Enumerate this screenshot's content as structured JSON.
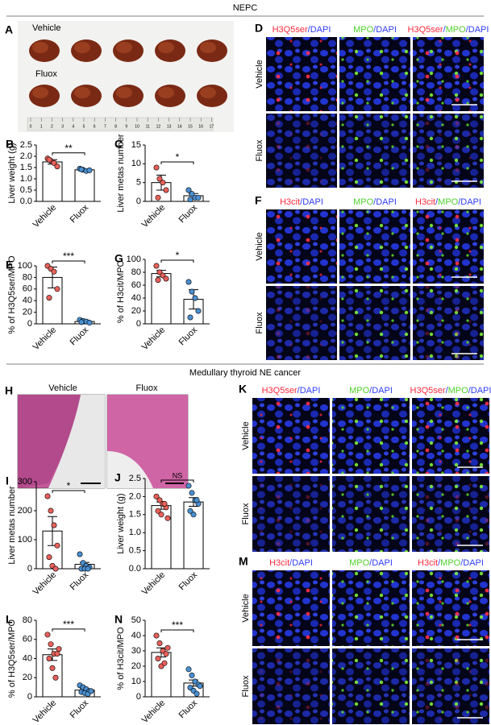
{
  "header": {
    "top": "NEPC",
    "bottom": "Medullary thyroid NE cancer"
  },
  "panel_a": {
    "letter": "A",
    "rows": [
      "Vehicle",
      "Fluox"
    ],
    "ruler": [
      0,
      1,
      2,
      3,
      4,
      5,
      6,
      7,
      8,
      9,
      10,
      11,
      12,
      13,
      14,
      15,
      16,
      17
    ]
  },
  "panel_h": {
    "letter": "H",
    "labels": [
      "Vehicle",
      "Fluox"
    ]
  },
  "micro": [
    {
      "letter": "D",
      "rows": [
        "Vehicle",
        "Fluox"
      ],
      "columns": [
        [
          {
            "text": "H3Q5ser",
            "color": "#ff2a3c"
          },
          {
            "text": "/DAPI",
            "color": "#2f3cf5"
          }
        ],
        [
          {
            "text": "MPO",
            "color": "#4fd12a"
          },
          {
            "text": "/DAPI",
            "color": "#2f3cf5"
          }
        ],
        [
          {
            "text": "H3Q5ser",
            "color": "#ff2a3c"
          },
          {
            "text": "/",
            "color": "#2f3cf5"
          },
          {
            "text": "MPO",
            "color": "#4fd12a"
          },
          {
            "text": "/DAPI",
            "color": "#2f3cf5"
          }
        ]
      ]
    },
    {
      "letter": "F",
      "rows": [
        "Vehicle",
        "Fluox"
      ],
      "columns": [
        [
          {
            "text": "H3cit",
            "color": "#ff2a3c"
          },
          {
            "text": "/DAPI",
            "color": "#2f3cf5"
          }
        ],
        [
          {
            "text": "MPO",
            "color": "#4fd12a"
          },
          {
            "text": "/DAPI",
            "color": "#2f3cf5"
          }
        ],
        [
          {
            "text": "H3cit",
            "color": "#ff2a3c"
          },
          {
            "text": "/",
            "color": "#2f3cf5"
          },
          {
            "text": "MPO",
            "color": "#4fd12a"
          },
          {
            "text": "/DAPI",
            "color": "#2f3cf5"
          }
        ]
      ]
    },
    {
      "letter": "K",
      "rows": [
        "Vehicle",
        "Fluox"
      ],
      "columns": [
        [
          {
            "text": "H3Q5ser",
            "color": "#ff2a3c"
          },
          {
            "text": "/DAPI",
            "color": "#2f3cf5"
          }
        ],
        [
          {
            "text": "MPO",
            "color": "#4fd12a"
          },
          {
            "text": "/DAPI",
            "color": "#2f3cf5"
          }
        ],
        [
          {
            "text": "H3Q5ser",
            "color": "#ff2a3c"
          },
          {
            "text": "/",
            "color": "#2f3cf5"
          },
          {
            "text": "MPO",
            "color": "#4fd12a"
          },
          {
            "text": "/DAPI",
            "color": "#2f3cf5"
          }
        ]
      ]
    },
    {
      "letter": "M",
      "rows": [
        "Vehicle",
        "Fluox"
      ],
      "columns": [
        [
          {
            "text": "H3cit",
            "color": "#ff2a3c"
          },
          {
            "text": "/DAPI",
            "color": "#2f3cf5"
          }
        ],
        [
          {
            "text": "MPO",
            "color": "#4fd12a"
          },
          {
            "text": "/DAPI",
            "color": "#2f3cf5"
          }
        ],
        [
          {
            "text": "H3cit",
            "color": "#ff2a3c"
          },
          {
            "text": "/",
            "color": "#2f3cf5"
          },
          {
            "text": "MPO",
            "color": "#4fd12a"
          },
          {
            "text": "/DAPI",
            "color": "#2f3cf5"
          }
        ]
      ]
    }
  ],
  "chart_data": [
    {
      "type": "bar",
      "panel": "B",
      "ylabel": "Liver weight (g)",
      "categories": [
        "Vehicle",
        "Fluox"
      ],
      "values": [
        1.75,
        1.4
      ],
      "errors": [
        0.1,
        0.03
      ],
      "points": [
        [
          1.9,
          1.8,
          1.7,
          1.55,
          1.85
        ],
        [
          1.45,
          1.4,
          1.35,
          1.38,
          1.42
        ]
      ],
      "point_colors": [
        "#e8605a",
        "#4a8fd0"
      ],
      "significance": "**",
      "ylim": [
        0,
        2.5
      ],
      "yticks": [
        {
          "value": 0,
          "label": "0.0"
        },
        0.5,
        {
          "value": 1,
          "label": "1.0"
        },
        1.5,
        {
          "value": 2,
          "label": "2.0"
        },
        2.5
      ]
    },
    {
      "type": "bar",
      "panel": "C",
      "ylabel": "Liver metas number",
      "categories": [
        "Vehicle",
        "Fluox"
      ],
      "values": [
        5,
        1.5
      ],
      "errors": [
        2,
        0.6
      ],
      "points": [
        [
          9,
          6,
          5,
          3,
          1
        ],
        [
          3,
          2,
          1,
          1,
          0.5
        ]
      ],
      "point_colors": [
        "#e8605a",
        "#4a8fd0"
      ],
      "significance": "*",
      "ylim": [
        0,
        15
      ],
      "yticks": [
        0,
        5,
        10,
        15
      ]
    },
    {
      "type": "bar",
      "panel": "E",
      "ylabel": "% of H3Q5ser/MPO",
      "categories": [
        "Vehicle",
        "Fluox"
      ],
      "values": [
        80,
        4
      ],
      "errors": [
        18,
        1
      ],
      "points": [
        [
          100,
          95,
          90,
          60,
          45
        ],
        [
          7,
          5,
          4,
          2,
          3
        ]
      ],
      "point_colors": [
        "#e8605a",
        "#4a8fd0"
      ],
      "significance": "***",
      "ylim": [
        0,
        100
      ],
      "yticks": [
        0,
        20,
        40,
        60,
        80,
        100
      ]
    },
    {
      "type": "bar",
      "panel": "G",
      "ylabel": "% of H3cit/MPO",
      "categories": [
        "Vehicle",
        "Fluox"
      ],
      "values": [
        78,
        38
      ],
      "errors": [
        5,
        15
      ],
      "points": [
        [
          90,
          80,
          75,
          70,
          68
        ],
        [
          65,
          50,
          40,
          20,
          10
        ]
      ],
      "point_colors": [
        "#e8605a",
        "#4a8fd0"
      ],
      "significance": "*",
      "ylim": [
        0,
        100
      ],
      "yticks": [
        0,
        20,
        40,
        60,
        80,
        100
      ]
    },
    {
      "type": "bar",
      "panel": "I",
      "ylabel": "Liver metas number",
      "categories": [
        "Vehicle",
        "Fluox"
      ],
      "values": [
        130,
        15
      ],
      "errors": [
        50,
        7
      ],
      "points": [
        [
          250,
          200,
          150,
          80,
          40,
          10,
          0
        ],
        [
          50,
          20,
          10,
          5,
          0,
          0,
          0
        ]
      ],
      "point_colors": [
        "#e8605a",
        "#4a8fd0"
      ],
      "significance": "*",
      "ylim": [
        0,
        300
      ],
      "yticks": [
        0,
        100,
        200,
        300
      ]
    },
    {
      "type": "bar",
      "panel": "J",
      "ylabel": "Liver weight (g)",
      "categories": [
        "Vehicle",
        "Fluox"
      ],
      "values": [
        1.75,
        1.85
      ],
      "errors": [
        0.1,
        0.12
      ],
      "points": [
        [
          2.0,
          1.9,
          1.8,
          1.7,
          1.6,
          1.5,
          1.8,
          1.4
        ],
        [
          2.3,
          2.1,
          1.9,
          1.8,
          1.6,
          1.5,
          1.9
        ]
      ],
      "point_colors": [
        "#e8605a",
        "#4a8fd0"
      ],
      "significance": "NS",
      "ylim": [
        0,
        2.5
      ],
      "yticks": [
        {
          "value": 0,
          "label": "0.0"
        },
        0.5,
        {
          "value": 1,
          "label": "1.0"
        },
        1.5,
        {
          "value": 2,
          "label": "2.0"
        },
        2.5
      ]
    },
    {
      "type": "bar",
      "panel": "L",
      "ylabel": "% of H3Q5ser/MPO",
      "categories": [
        "Vehicle",
        "Fluox"
      ],
      "values": [
        44,
        7
      ],
      "errors": [
        6,
        1.5
      ],
      "points": [
        [
          65,
          55,
          45,
          45,
          40,
          30,
          20,
          50
        ],
        [
          12,
          10,
          8,
          6,
          5,
          4,
          3,
          6
        ]
      ],
      "point_colors": [
        "#e8605a",
        "#4a8fd0"
      ],
      "significance": "***",
      "ylim": [
        0,
        80
      ],
      "yticks": [
        0,
        20,
        40,
        60,
        80
      ]
    },
    {
      "type": "bar",
      "panel": "N",
      "ylabel": "% of H3cit/MPO",
      "categories": [
        "Vehicle",
        "Fluox"
      ],
      "values": [
        29,
        9
      ],
      "errors": [
        3,
        2
      ],
      "points": [
        [
          40,
          35,
          30,
          28,
          25,
          20,
          22,
          32
        ],
        [
          18,
          14,
          10,
          8,
          6,
          4,
          2,
          7
        ]
      ],
      "point_colors": [
        "#e8605a",
        "#4a8fd0"
      ],
      "significance": "***",
      "ylim": [
        0,
        50
      ],
      "yticks": [
        0,
        10,
        20,
        30,
        40,
        50
      ]
    }
  ]
}
